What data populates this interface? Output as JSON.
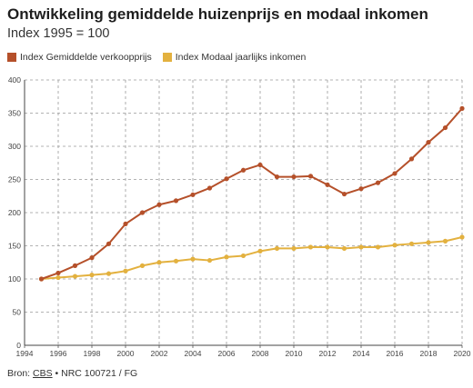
{
  "chart_data": {
    "type": "line",
    "title": "Ontwikkeling gemiddelde huizenprijs en modaal inkomen",
    "subtitle": "Index 1995 = 100",
    "xlim": [
      1994,
      2020
    ],
    "ylim": [
      0,
      400
    ],
    "x_ticks": [
      1994,
      1996,
      1998,
      2000,
      2002,
      2004,
      2006,
      2008,
      2010,
      2012,
      2014,
      2016,
      2018,
      2020
    ],
    "y_ticks": [
      0,
      50,
      100,
      150,
      200,
      250,
      300,
      350,
      400
    ],
    "grid": true,
    "legend_position": "top-left",
    "x": [
      1995,
      1996,
      1997,
      1998,
      1999,
      2000,
      2001,
      2002,
      2003,
      2004,
      2005,
      2006,
      2007,
      2008,
      2009,
      2010,
      2011,
      2012,
      2013,
      2014,
      2015,
      2016,
      2017,
      2018,
      2019,
      2020
    ],
    "series": [
      {
        "name": "Index Gemiddelde verkoopprijs",
        "color": "#b5502a",
        "values": [
          100,
          109,
          120,
          132,
          153,
          183,
          200,
          212,
          218,
          227,
          237,
          251,
          264,
          272,
          254,
          254,
          255,
          242,
          228,
          236,
          245,
          259,
          281,
          306,
          328,
          357
        ]
      },
      {
        "name": "Index Modaal jaarlijks inkomen",
        "color": "#e3b13f",
        "values": [
          100,
          102,
          104,
          106,
          108,
          112,
          120,
          125,
          127,
          130,
          128,
          133,
          135,
          142,
          146,
          146,
          148,
          148,
          146,
          148,
          148,
          151,
          153,
          155,
          157,
          163
        ]
      }
    ]
  },
  "source": {
    "prefix": "Bron: ",
    "cbs": "CBS",
    "rest": " • NRC 100721 / FG"
  }
}
